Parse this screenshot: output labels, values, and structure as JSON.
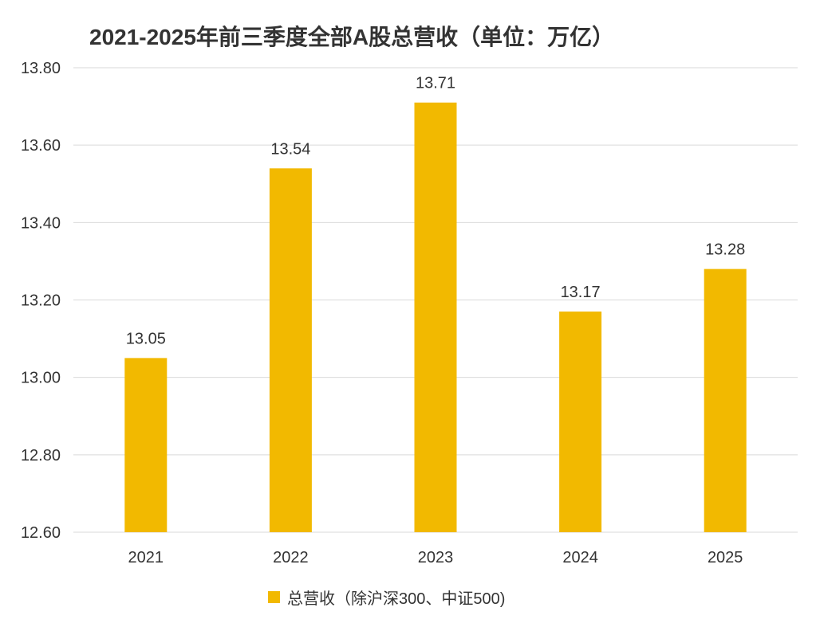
{
  "chart_data": {
    "type": "bar",
    "title": "2021-2025年前三季度全部A股总营收（单位：万亿）",
    "categories": [
      "2021",
      "2022",
      "2023",
      "2024",
      "2025"
    ],
    "series": [
      {
        "name": "总营收（除沪深300、中证500)",
        "values": [
          13.05,
          13.54,
          13.71,
          13.17,
          13.28
        ],
        "data_labels": [
          "13.05",
          "13.54",
          "13.71",
          "13.17",
          "13.28"
        ]
      }
    ],
    "ylim": [
      12.6,
      13.8
    ],
    "yticks": [
      "12.60",
      "12.80",
      "13.00",
      "13.20",
      "13.40",
      "13.60",
      "13.80"
    ],
    "ytick_values": [
      12.6,
      12.8,
      13.0,
      13.2,
      13.4,
      13.6,
      13.8
    ],
    "grid": true,
    "legend_position": "bottom",
    "colors": {
      "bar": "#F2B900",
      "grid": "#d9d9d9",
      "text": "#333333"
    }
  }
}
